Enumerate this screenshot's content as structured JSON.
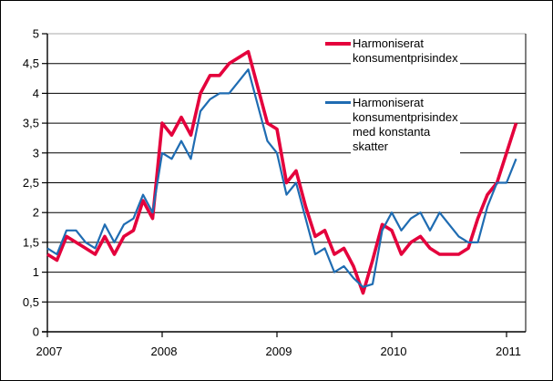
{
  "chart_data": {
    "type": "line",
    "x_frequency": "monthly",
    "x_range": [
      "2007-01",
      "2011-02"
    ],
    "x_tick_labels": [
      "2007",
      "2008",
      "2009",
      "2010",
      "2011"
    ],
    "y_tick_labels": [
      "5",
      "4,5",
      "4",
      "3,5",
      "3",
      "2,5",
      "2",
      "1,5",
      "1",
      "0,5",
      "0"
    ],
    "ylim": [
      0,
      5
    ],
    "y_step": 0.5,
    "grid": "horizontal",
    "legend_position": "inside-top-right",
    "series": [
      {
        "name": "Harmoniserat konsumentprisindex",
        "color": "#e4003c",
        "line_width": 3.6,
        "values": [
          1.3,
          1.2,
          1.6,
          1.5,
          1.4,
          1.3,
          1.6,
          1.3,
          1.6,
          1.7,
          2.2,
          1.9,
          3.5,
          3.3,
          3.6,
          3.3,
          4.0,
          4.3,
          4.3,
          4.5,
          4.6,
          4.7,
          4.1,
          3.5,
          3.4,
          2.5,
          2.7,
          2.1,
          1.6,
          1.7,
          1.3,
          1.4,
          1.1,
          0.65,
          1.2,
          1.8,
          1.7,
          1.3,
          1.5,
          1.6,
          1.4,
          1.3,
          1.3,
          1.3,
          1.4,
          1.9,
          2.3,
          2.5,
          3.0,
          3.5
        ]
      },
      {
        "name": "Harmoniserat konsumentprisindex med konstanta skatter",
        "color": "#1f6cb2",
        "line_width": 2.2,
        "values": [
          1.4,
          1.3,
          1.7,
          1.7,
          1.5,
          1.4,
          1.8,
          1.5,
          1.8,
          1.9,
          2.3,
          2.0,
          3.0,
          2.9,
          3.2,
          2.9,
          3.7,
          3.9,
          4.0,
          4.0,
          4.2,
          4.4,
          3.8,
          3.2,
          3.0,
          2.3,
          2.5,
          1.9,
          1.3,
          1.4,
          1.0,
          1.1,
          0.9,
          0.75,
          0.8,
          1.7,
          2.0,
          1.7,
          1.9,
          2.0,
          1.7,
          2.0,
          1.8,
          1.6,
          1.5,
          1.5,
          2.1,
          2.5,
          2.5,
          2.9
        ]
      }
    ],
    "colors": {
      "gridline": "#000000",
      "top_border": "#a8a8a8",
      "axis": "#000000",
      "background": "#ffffff"
    }
  },
  "legend": {
    "items": [
      {
        "label_lines": [
          "Harmoniserat",
          "konsumentprisindex"
        ]
      },
      {
        "label_lines": [
          "Harmoniserat",
          "konsumentprisindex",
          "med konstanta",
          "skatter"
        ]
      }
    ]
  }
}
